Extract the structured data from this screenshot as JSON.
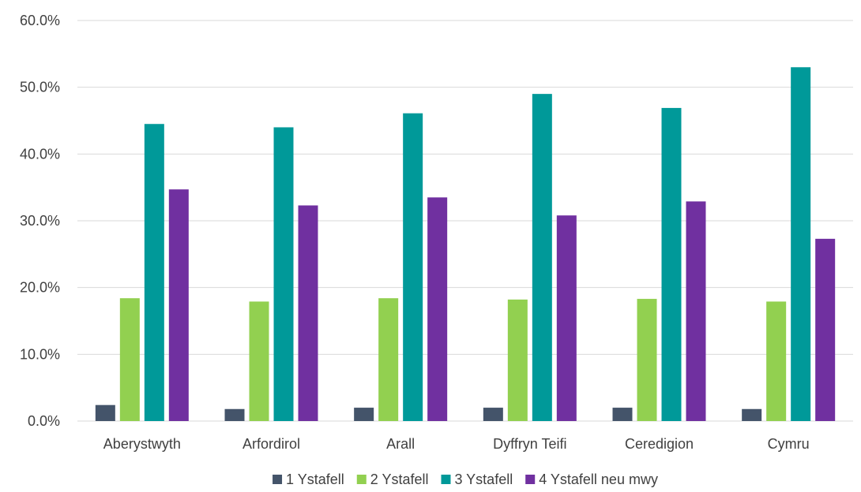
{
  "chart_data": {
    "type": "bar",
    "categories": [
      "Aberystwyth",
      "Arfordirol",
      "Arall",
      "Dyffryn Teifi",
      "Ceredigion",
      "Cymru"
    ],
    "series": [
      {
        "name": "1 Ystafell",
        "color": "#44546a",
        "values": [
          2.4,
          1.8,
          2.0,
          2.0,
          2.0,
          1.8
        ]
      },
      {
        "name": "2 Ystafell",
        "color": "#92d050",
        "values": [
          18.4,
          17.9,
          18.4,
          18.2,
          18.3,
          17.9
        ]
      },
      {
        "name": "3 Ystafell",
        "color": "#009999",
        "values": [
          44.5,
          44.0,
          46.1,
          49.0,
          46.9,
          53.0
        ]
      },
      {
        "name": "4 Ystafell neu mwy",
        "color": "#7030a0",
        "values": [
          34.7,
          32.3,
          33.5,
          30.8,
          32.9,
          27.3
        ]
      }
    ],
    "ylim": [
      0,
      60
    ],
    "yticks": [
      "0.0%",
      "10.0%",
      "20.0%",
      "30.0%",
      "40.0%",
      "50.0%",
      "60.0%"
    ],
    "grid": true,
    "legend_position": "bottom"
  }
}
